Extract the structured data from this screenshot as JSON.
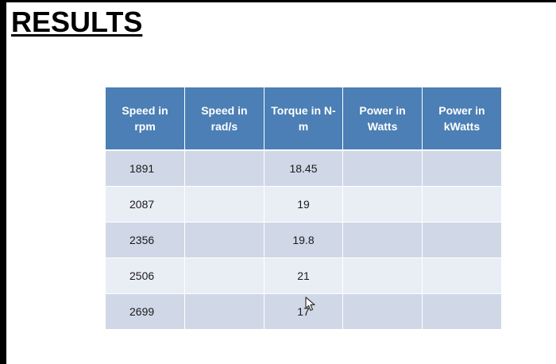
{
  "slide": {
    "title": "RESULTS"
  },
  "table": {
    "headers": [
      "Speed in rpm",
      "Speed in rad/s",
      "Torque in N-m",
      "Power in Watts",
      "Power in kWatts"
    ],
    "rows": [
      {
        "speed_rpm": "1891",
        "speed_rads": "",
        "torque_nm": "18.45",
        "power_w": "",
        "power_kw": ""
      },
      {
        "speed_rpm": "2087",
        "speed_rads": "",
        "torque_nm": "19",
        "power_w": "",
        "power_kw": ""
      },
      {
        "speed_rpm": "2356",
        "speed_rads": "",
        "torque_nm": "19.8",
        "power_w": "",
        "power_kw": ""
      },
      {
        "speed_rpm": "2506",
        "speed_rads": "",
        "torque_nm": "21",
        "power_w": "",
        "power_kw": ""
      },
      {
        "speed_rpm": "2699",
        "speed_rads": "",
        "torque_nm": "17",
        "power_w": "",
        "power_kw": ""
      }
    ]
  },
  "colors": {
    "header_bg": "#4b7fb5",
    "row_odd_bg": "#d0d8e7",
    "row_even_bg": "#e9edf4"
  },
  "icons": {
    "cursor": "mouse-pointer-icon"
  }
}
